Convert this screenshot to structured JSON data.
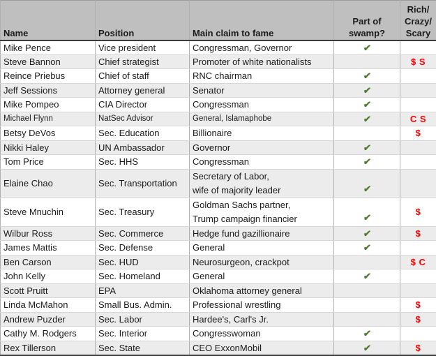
{
  "colors": {
    "header_bg": "#bfbfbf",
    "band_bg": "#ececec",
    "grid_vertical": "#b0b0b0",
    "grid_horizontal": "#d7d7d7",
    "strong_border": "#3c3c3c",
    "outer_border": "#9b9b9b",
    "check_green": "#4d7d33",
    "flag_red": "#fe0000",
    "text": "#1b1b1b"
  },
  "icons": {
    "swamp_check": "✔"
  },
  "table": {
    "columns": [
      {
        "key": "name",
        "label": "Name"
      },
      {
        "key": "position",
        "label": "Position"
      },
      {
        "key": "claim",
        "label": "Main claim to fame"
      },
      {
        "key": "swamp",
        "label": "Part of\nswamp?"
      },
      {
        "key": "rcs",
        "label": "Rich/\nCrazy/\nScary"
      }
    ],
    "rows": [
      {
        "name": "Mike Pence",
        "position": "Vice president",
        "claim": "Congressman, Governor",
        "swamp": true,
        "rcs": ""
      },
      {
        "name": "Steve Bannon",
        "position": "Chief strategist",
        "claim": "Promoter of white nationalists",
        "swamp": false,
        "rcs": "$ S"
      },
      {
        "name": "Reince Priebus",
        "position": "Chief of staff",
        "claim": "RNC chairman",
        "swamp": true,
        "rcs": ""
      },
      {
        "name": "Jeff Sessions",
        "position": "Attorney general",
        "claim": "Senator",
        "swamp": true,
        "rcs": ""
      },
      {
        "name": "Mike Pompeo",
        "position": "CIA Director",
        "claim": "Congressman",
        "swamp": true,
        "rcs": ""
      },
      {
        "name": "Michael Flynn",
        "position": "NatSec Advisor",
        "claim": "General, Islamaphobe",
        "swamp": true,
        "rcs": "C S",
        "small_text": true
      },
      {
        "name": "Betsy DeVos",
        "position": "Sec. Education",
        "claim": "Billionaire",
        "swamp": false,
        "rcs": "$"
      },
      {
        "name": "Nikki Haley",
        "position": "UN Ambassador",
        "claim": "Governor",
        "swamp": true,
        "rcs": ""
      },
      {
        "name": "Tom Price",
        "position": "Sec. HHS",
        "claim": "Congressman",
        "swamp": true,
        "rcs": ""
      },
      {
        "name": "Elaine Chao",
        "position": "Sec. Transportation",
        "claim": "Secretary of Labor,\nwife of majority leader",
        "swamp": true,
        "rcs": ""
      },
      {
        "name": "Steve Mnuchin",
        "position": "Sec. Treasury",
        "claim": "Goldman Sachs partner,\nTrump campaign financier",
        "swamp": true,
        "rcs": "$"
      },
      {
        "name": "Wilbur Ross",
        "position": "Sec. Commerce",
        "claim": "Hedge fund gazillionaire",
        "swamp": true,
        "rcs": "$"
      },
      {
        "name": "James Mattis",
        "position": "Sec. Defense",
        "claim": "General",
        "swamp": true,
        "rcs": ""
      },
      {
        "name": "Ben Carson",
        "position": "Sec. HUD",
        "claim": "Neurosurgeon, crackpot",
        "swamp": false,
        "rcs": "$ C"
      },
      {
        "name": "John Kelly",
        "position": "Sec. Homeland",
        "claim": "General",
        "swamp": true,
        "rcs": ""
      },
      {
        "name": "Scott Pruitt",
        "position": "EPA",
        "claim": "Oklahoma attorney general",
        "swamp": false,
        "rcs": ""
      },
      {
        "name": "Linda McMahon",
        "position": "Small Bus. Admin.",
        "claim": "Professional wrestling",
        "swamp": false,
        "rcs": "$"
      },
      {
        "name": "Andrew Puzder",
        "position": "Sec. Labor",
        "claim": "Hardee's, Carl's Jr.",
        "swamp": false,
        "rcs": "$"
      },
      {
        "name": "Cathy M. Rodgers",
        "position": "Sec. Interior",
        "claim": "Congresswoman",
        "swamp": true,
        "rcs": ""
      },
      {
        "name": "Rex Tillerson",
        "position": "Sec. State",
        "claim": "CEO ExxonMobil",
        "swamp": true,
        "rcs": "$"
      }
    ]
  }
}
